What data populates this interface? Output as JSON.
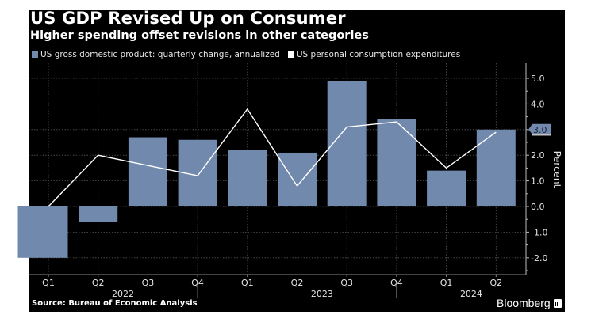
{
  "header": {
    "title": "US GDP Revised Up on Consumer",
    "subtitle": "Higher spending offset revisions in other categories"
  },
  "legend": [
    {
      "label": "US gross domestic product: quarterly change, annualized",
      "color": "#7189ad"
    },
    {
      "label": "US personal consumption expenditures",
      "color": "#ffffff"
    }
  ],
  "footer": {
    "source": "Source: Bureau of Economic Analysis",
    "brand": "Bloomberg"
  },
  "colors": {
    "background": "#000000",
    "bar": "#7189ad",
    "line": "#ffffff",
    "text": "#e6e6e6",
    "grid": "#555555"
  },
  "chart_data": {
    "type": "bar",
    "title": "US GDP Revised Up on Consumer",
    "subtitle": "Higher spending offset revisions in other categories",
    "categories": [
      "Q1",
      "Q2",
      "Q3",
      "Q4",
      "Q1",
      "Q2",
      "Q3",
      "Q4",
      "Q1",
      "Q2"
    ],
    "years": [
      {
        "label": "2022",
        "start": 0,
        "end": 3
      },
      {
        "label": "2023",
        "start": 4,
        "end": 7
      },
      {
        "label": "2024",
        "start": 8,
        "end": 9
      }
    ],
    "series": [
      {
        "name": "US gross domestic product: quarterly change, annualized",
        "type": "bar",
        "values": [
          -2.0,
          -0.6,
          2.7,
          2.6,
          2.2,
          2.1,
          4.9,
          3.4,
          1.4,
          3.0
        ]
      },
      {
        "name": "US personal consumption expenditures",
        "type": "line",
        "values": [
          0.0,
          2.0,
          1.6,
          1.2,
          3.8,
          0.8,
          3.1,
          3.3,
          1.5,
          2.9
        ]
      }
    ],
    "ylabel": "Percent",
    "xlabel": "",
    "ylim": [
      -2.8,
      5.5
    ],
    "yticks": [
      5.0,
      4.0,
      3.0,
      2.0,
      1.0,
      0.0,
      -1.0,
      -2.0
    ],
    "ytick_labels": [
      "5.0",
      "4.0",
      "",
      "2.0",
      "1.0",
      "0.0",
      "-1.0",
      "-2.0"
    ],
    "last_value_label": "3.0",
    "axis_side": "right",
    "grid": true,
    "legend_position": "top-left",
    "source": "Source: Bureau of Economic Analysis"
  }
}
